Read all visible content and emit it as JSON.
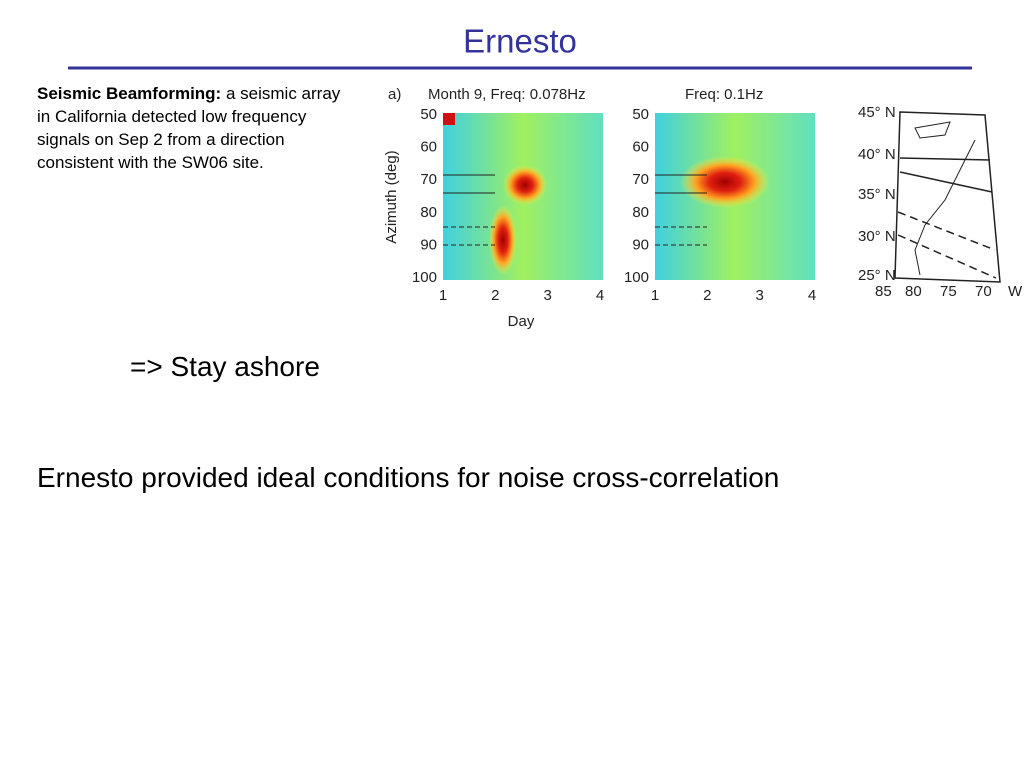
{
  "header": {
    "title": "Ernesto"
  },
  "body": {
    "lead": "Seismic Beamforming:",
    "text": "a seismic array in California detected low frequency signals on Sep 2 from a direction consistent with the SW06 site.",
    "conclusion": "=> Stay ashore",
    "statement": "Ernesto provided ideal conditions for noise cross-correlation"
  },
  "figure": {
    "panel_label": "a)",
    "panels": [
      {
        "title": "Month 9, Freq: 0.078Hz"
      },
      {
        "title": "Freq: 0.1Hz"
      }
    ],
    "y_axis_label": "Azimuth (deg)",
    "x_axis_label": "Day",
    "yticks": [
      50,
      60,
      70,
      80,
      90,
      100
    ],
    "xticks": [
      1,
      2,
      3,
      4
    ],
    "map_lat_labels": [
      "45° N",
      "40° N",
      "35° N",
      "30° N",
      "25° N"
    ],
    "map_lon_labels": [
      "85",
      "80",
      "75",
      "70",
      "W"
    ]
  }
}
